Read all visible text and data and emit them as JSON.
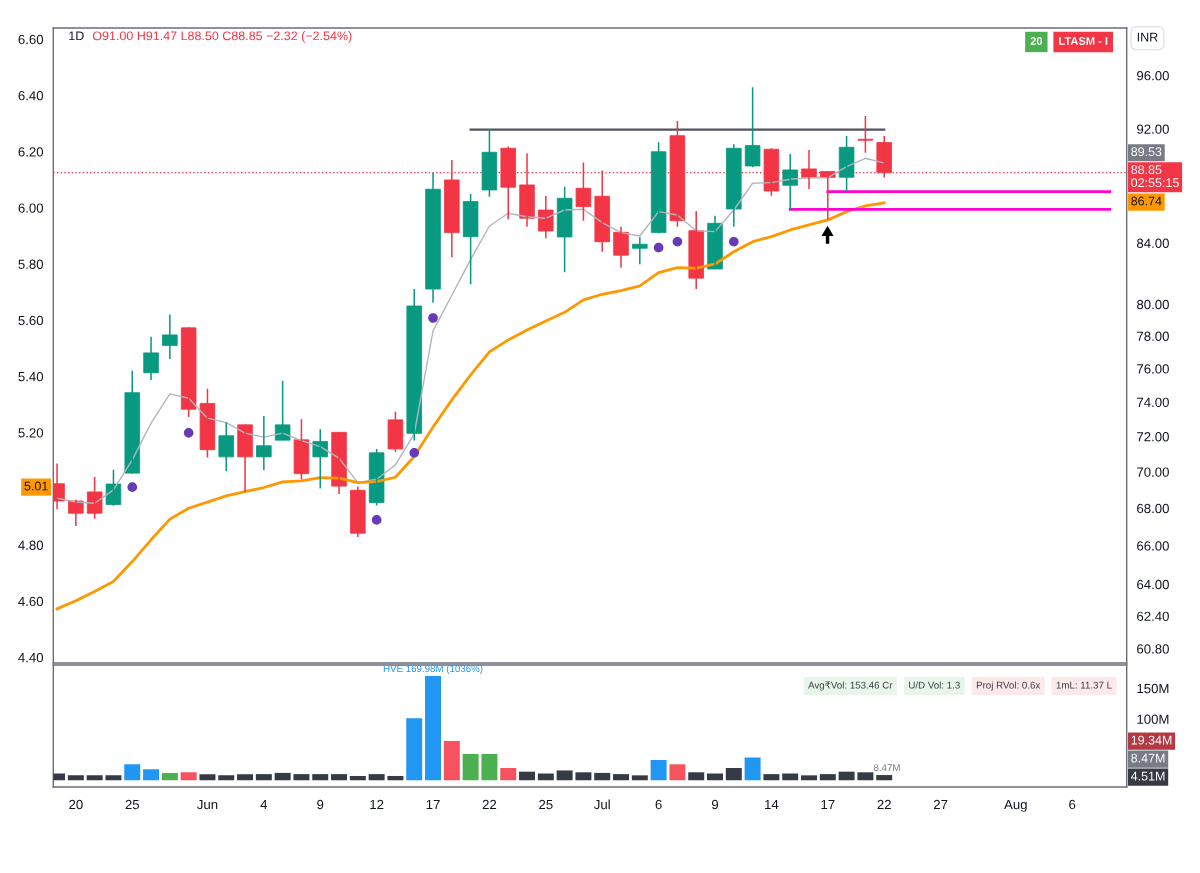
{
  "chart_data": [
    {
      "type": "candlestick",
      "title": "1D",
      "subtitle": "O91.00 H91.47 L88.50 C88.85 −2.32 (−2.54%)",
      "ylabel": "INR",
      "categories": [
        null,
        null,
        null,
        null,
        null,
        null,
        null,
        null,
        null,
        null,
        null,
        null,
        null,
        null,
        null,
        null,
        null,
        null,
        null,
        null,
        null,
        null,
        null,
        null,
        null,
        null,
        null,
        null,
        null,
        null,
        null,
        null,
        null,
        null,
        null,
        null,
        null,
        null,
        null,
        null,
        null,
        null,
        null,
        null,
        null,
        null,
        null,
        null,
        null,
        null,
        null,
        null,
        null,
        null,
        null,
        null,
        null
      ],
      "ohlc": [
        [
          69.34,
          70.46,
          67.96,
          68.39
        ],
        [
          68.39,
          68.46,
          67.05,
          67.73
        ],
        [
          68.89,
          69.71,
          67.43,
          67.73
        ],
        [
          68.2,
          70.12,
          68.13,
          69.32
        ],
        [
          69.93,
          75.87,
          69.9,
          74.56
        ],
        [
          75.75,
          77.96,
          75.31,
          76.96
        ],
        [
          77.41,
          79.35,
          76.59,
          78.07
        ],
        [
          78.51,
          78.55,
          73.13,
          73.58
        ],
        [
          73.92,
          74.79,
          70.81,
          71.25
        ],
        [
          70.84,
          72.8,
          70.04,
          72.04
        ],
        [
          72.67,
          72.7,
          68.89,
          70.84
        ],
        [
          70.84,
          73.19,
          70.1,
          71.47
        ],
        [
          71.79,
          75.27,
          71.79,
          72.67
        ],
        [
          71.81,
          73.0,
          69.58,
          69.9
        ],
        [
          70.84,
          72.42,
          69.08,
          71.71
        ],
        [
          72.24,
          72.26,
          68.78,
          69.21
        ],
        [
          68.98,
          69.19,
          66.46,
          66.66
        ],
        [
          68.31,
          71.29,
          68.15,
          71.07
        ],
        [
          72.96,
          73.44,
          71.12,
          71.29
        ],
        [
          72.18,
          80.98,
          71.77,
          79.89
        ],
        [
          80.98,
          88.85,
          80.1,
          87.68
        ],
        [
          88.33,
          89.75,
          83.05,
          84.7
        ],
        [
          84.43,
          87.35,
          81.29,
          86.82
        ],
        [
          87.63,
          91.95,
          87.16,
          90.3
        ],
        [
          90.59,
          90.71,
          85.61,
          87.82
        ],
        [
          87.98,
          90.23,
          85.1,
          85.68
        ],
        [
          86.24,
          87.21,
          84.32,
          84.81
        ],
        [
          84.41,
          87.86,
          82.07,
          87.05
        ],
        [
          87.75,
          89.56,
          85.51,
          86.47
        ],
        [
          87.19,
          88.99,
          83.42,
          84.09
        ],
        [
          84.72,
          85.1,
          82.37,
          83.19
        ],
        [
          83.65,
          84.39,
          82.59,
          83.92
        ],
        [
          84.7,
          91.02,
          84.65,
          90.34
        ],
        [
          91.5,
          92.58,
          85.1,
          85.51
        ],
        [
          84.83,
          86.17,
          80.98,
          81.68
        ],
        [
          82.28,
          85.85,
          82.28,
          85.33
        ],
        [
          86.31,
          90.88,
          85.1,
          90.59
        ],
        [
          89.32,
          95.1,
          89.23,
          90.78
        ],
        [
          90.52,
          90.59,
          87.23,
          87.56
        ],
        [
          87.96,
          90.18,
          86.29,
          89.04
        ],
        [
          89.11,
          90.47,
          87.7,
          88.52
        ],
        [
          88.92,
          88.94,
          85.61,
          88.52
        ],
        [
          88.52,
          91.48,
          87.56,
          90.66
        ],
        [
          91.24,
          92.95,
          90.27,
          91.17
        ],
        [
          91.0,
          91.47,
          88.5,
          88.85
        ],
        null,
        null,
        null,
        null,
        null,
        null,
        null,
        null,
        null,
        null,
        null,
        null
      ],
      "series": [
        {
          "type": "line",
          "color": "#b2b5be",
          "values": [
            68.55,
            68.34,
            68.27,
            69.0,
            70.67,
            72.77,
            74.49,
            74.23,
            73.06,
            72.8,
            72.19,
            71.96,
            72.19,
            71.76,
            71.42,
            70.77,
            69.4,
            69.59,
            70.39,
            72.15,
            78.32,
            80.58,
            82.9,
            85.15,
            86.02,
            85.78,
            85.68,
            86.24,
            86.29,
            85.38,
            84.7,
            84.47,
            86.13,
            85.9,
            84.83,
            84.77,
            86.24,
            88.1,
            88.14,
            88.38,
            88.49,
            88.49,
            89.27,
            89.87,
            89.53,
            null,
            null,
            null,
            null,
            null,
            null,
            null,
            null,
            null,
            null,
            null,
            null
          ]
        },
        {
          "type": "line",
          "color": "#ff9800",
          "values": [
            62.76,
            63.17,
            63.63,
            64.14,
            65.17,
            66.31,
            67.41,
            68.0,
            68.33,
            68.67,
            68.91,
            69.13,
            69.44,
            69.5,
            69.68,
            69.65,
            69.4,
            69.46,
            69.7,
            70.86,
            72.55,
            74.13,
            75.62,
            77.02,
            77.76,
            78.38,
            78.94,
            79.49,
            80.28,
            80.64,
            80.87,
            81.18,
            82.04,
            82.37,
            82.33,
            82.61,
            83.42,
            84.09,
            84.43,
            84.88,
            85.22,
            85.56,
            86.13,
            86.52,
            86.74,
            null,
            null,
            null,
            null,
            null,
            null,
            null,
            null,
            null,
            null,
            null,
            null
          ]
        },
        {
          "type": "line",
          "color": "#50535e",
          "values": [
            null,
            null,
            null,
            null,
            null,
            null,
            null,
            null,
            null,
            null,
            null,
            null,
            null,
            null,
            null,
            null,
            null,
            null,
            null,
            null,
            null,
            null,
            91.95,
            91.95,
            91.95,
            91.95,
            91.95,
            91.95,
            91.95,
            91.95,
            91.95,
            91.95,
            91.95,
            91.95,
            91.95,
            91.95,
            91.95,
            91.95,
            91.95,
            91.95,
            91.95,
            91.95,
            91.95,
            91.95,
            91.95,
            null,
            null,
            null,
            null,
            null,
            null,
            null,
            null,
            null,
            null,
            null,
            null
          ]
        },
        {
          "type": "line",
          "color": "#ff00d4",
          "values": [
            null,
            null,
            null,
            null,
            null,
            null,
            null,
            null,
            null,
            null,
            null,
            null,
            null,
            null,
            null,
            null,
            null,
            null,
            null,
            null,
            null,
            null,
            null,
            null,
            null,
            null,
            null,
            null,
            null,
            null,
            null,
            null,
            null,
            null,
            null,
            null,
            null,
            null,
            null,
            null,
            null,
            87.51,
            87.51,
            87.51,
            87.51,
            87.51,
            87.51,
            87.51,
            87.51,
            87.51,
            87.51,
            87.51,
            87.51,
            87.51,
            87.51,
            87.51,
            87.51
          ]
        },
        {
          "type": "line",
          "color": "#ff00d4",
          "values": [
            null,
            null,
            null,
            null,
            null,
            null,
            null,
            null,
            null,
            null,
            null,
            null,
            null,
            null,
            null,
            null,
            null,
            null,
            null,
            null,
            null,
            null,
            null,
            null,
            null,
            null,
            null,
            null,
            null,
            null,
            null,
            null,
            null,
            null,
            null,
            null,
            null,
            null,
            null,
            86.29,
            86.29,
            86.29,
            86.29,
            86.29,
            86.29,
            86.29,
            86.29,
            86.29,
            86.29,
            86.29,
            86.29,
            86.29,
            86.29,
            86.29,
            86.29,
            86.29,
            86.29
          ]
        },
        {
          "type": "scatter",
          "color": "#673ab7",
          "marker": "circle",
          "values": [
            null,
            null,
            null,
            null,
            69.15,
            null,
            null,
            72.21,
            null,
            null,
            null,
            null,
            null,
            null,
            null,
            null,
            null,
            67.37,
            null,
            71.07,
            79.13,
            null,
            null,
            null,
            null,
            null,
            null,
            null,
            null,
            null,
            null,
            null,
            83.69,
            84.09,
            null,
            null,
            84.09,
            null,
            null,
            null,
            null,
            null,
            null,
            null,
            null,
            null,
            null,
            null,
            null,
            null,
            null,
            null,
            null,
            null,
            null,
            null,
            null
          ]
        }
      ],
      "log": "y",
      "ylim": [
        60.11,
        99.7
      ],
      "yticks": [
        {
          "value": 60.8,
          "label": "60.80"
        },
        {
          "value": 62.4,
          "label": "62.40"
        },
        {
          "value": 64,
          "label": "64.00"
        },
        {
          "value": 66,
          "label": "66.00"
        },
        {
          "value": 68,
          "label": "68.00"
        },
        {
          "value": 70,
          "label": "70.00"
        },
        {
          "value": 72,
          "label": "72.00"
        },
        {
          "value": 74,
          "label": "74.00"
        },
        {
          "value": 76,
          "label": "76.00"
        },
        {
          "value": 78,
          "label": "78.00"
        },
        {
          "value": 80,
          "label": "80.00"
        },
        {
          "value": 84,
          "label": "84.00"
        },
        {
          "value": 92,
          "label": "92.00"
        },
        {
          "value": 96,
          "label": "96.00"
        }
      ],
      "y2lim": [
        4.38,
        6.64
      ],
      "y2ticks": [
        {
          "value": 4.4,
          "label": "4.40"
        },
        {
          "value": 4.6,
          "label": "4.60"
        },
        {
          "value": 4.8,
          "label": "4.80"
        },
        {
          "value": 5.2,
          "label": "5.20"
        },
        {
          "value": 5.4,
          "label": "5.40"
        },
        {
          "value": 5.6,
          "label": "5.60"
        },
        {
          "value": 5.8,
          "label": "5.80"
        },
        {
          "value": 6.0,
          "label": "6.00"
        },
        {
          "value": 6.2,
          "label": "6.20"
        },
        {
          "value": 6.4,
          "label": "6.40"
        },
        {
          "value": 6.6,
          "label": "6.60"
        }
      ],
      "tick_labels": "y",
      "ref_lines": [
        {
          "axis": "y",
          "value": 88.85,
          "label": "88.85\n02:55:15",
          "color": "#f23645",
          "line_style": "dotted"
        }
      ],
      "annotations": [
        "20",
        "LTASM - I",
        "5.01",
        "89.53",
        {
          "text": "86.74",
          "y": 86.74
        }
      ]
    },
    {
      "type": "bar",
      "categories": [
        null,
        "20",
        null,
        null,
        "25",
        null,
        null,
        null,
        "Jun",
        null,
        null,
        "4",
        null,
        null,
        "9",
        null,
        null,
        "12",
        null,
        null,
        "17",
        null,
        null,
        "22",
        null,
        null,
        "25",
        null,
        null,
        "Jul",
        null,
        null,
        "6",
        null,
        null,
        "9",
        null,
        null,
        "14",
        null,
        null,
        "17",
        null,
        null,
        "22",
        null,
        null,
        "27",
        null,
        null,
        null,
        "Aug",
        null,
        null,
        "6",
        null,
        null
      ],
      "values": [
        11,
        8,
        8,
        8,
        26,
        18,
        12,
        13,
        10,
        8,
        10,
        10,
        12,
        10,
        10,
        10,
        7,
        10,
        7,
        101,
        169.98,
        64,
        43,
        43,
        20,
        14,
        11,
        16,
        13,
        12,
        10,
        8,
        33,
        26,
        13,
        11,
        20,
        37,
        10,
        11,
        8,
        10,
        14,
        13,
        8.47,
        null,
        null,
        null,
        null,
        null,
        null,
        null,
        null,
        null,
        null,
        null,
        null
      ],
      "colors": [
        "#363a45",
        "#363a45",
        "#363a45",
        "#363a45",
        "#2196f3",
        "#2196f3",
        "#4caf50",
        "#f7525f",
        "#363a45",
        "#363a45",
        "#363a45",
        "#363a45",
        "#363a45",
        "#363a45",
        "#363a45",
        "#363a45",
        "#363a45",
        "#363a45",
        "#363a45",
        "#2196f3",
        "#2196f3",
        "#f7525f",
        "#4caf50",
        "#4caf50",
        "#f7525f",
        "#363a45",
        "#363a45",
        "#363a45",
        "#363a45",
        "#363a45",
        "#363a45",
        "#363a45",
        "#2196f3",
        "#f7525f",
        "#363a45",
        "#363a45",
        "#363a45",
        "#2196f3",
        "#363a45",
        "#363a45",
        "#363a45",
        "#363a45",
        "#363a45",
        "#363a45",
        "#363a45",
        null,
        null,
        null,
        null,
        null,
        null,
        null,
        null,
        null,
        null,
        null,
        null
      ],
      "value_labels": [
        null,
        null,
        null,
        null,
        null,
        null,
        null,
        null,
        null,
        null,
        null,
        null,
        null,
        null,
        null,
        null,
        null,
        null,
        null,
        null,
        null,
        null,
        null,
        null,
        null,
        null,
        null,
        null,
        null,
        null,
        null,
        null,
        null,
        null,
        null,
        null,
        null,
        null,
        null,
        null,
        null,
        null,
        null,
        null,
        "8.47M",
        null,
        null,
        null,
        null,
        null,
        null,
        null,
        null,
        null,
        null,
        null,
        null
      ],
      "ylim": [
        -11,
        188
      ],
      "yticks": [
        {
          "value": 100,
          "label": "100M"
        },
        {
          "value": 150,
          "label": "150M"
        }
      ],
      "annotations": [
        "Avg₹Vol: 153.46 Cr",
        "U/D Vol: 1.3",
        "Proj RVol: 0.6x",
        "1mL: 11.37 L",
        "19.34M",
        "8.47M",
        "4.51M",
        {
          "text": "HVE 169.98M (1036%)",
          "x": "17",
          "y": 169.98
        }
      ]
    }
  ]
}
